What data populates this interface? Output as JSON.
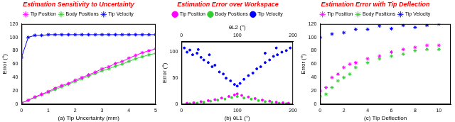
{
  "chart_data": [
    {
      "type": "line",
      "title": "Estimation Sensitivity to Uncertainty",
      "label": "(a)",
      "xlabel": "Tip Uncertainty (mm)",
      "ylabel": "Error (°)",
      "xlim": [
        0,
        5
      ],
      "xticks": [
        0,
        1,
        2,
        3,
        4,
        5
      ],
      "ylim": [
        0,
        120
      ],
      "yticks": [
        0,
        20,
        40,
        60,
        80,
        100,
        120
      ],
      "grid": false,
      "legend": "top",
      "series": [
        {
          "name": "Tip Position",
          "color": "#ff00ff",
          "marker": "star",
          "x": [
            0,
            0.25,
            0.5,
            0.75,
            1,
            1.25,
            1.5,
            1.75,
            2,
            2.25,
            2.5,
            2.75,
            3,
            3.25,
            3.5,
            3.75,
            4,
            4.25,
            4.5,
            4.75,
            5
          ],
          "values": [
            2,
            6,
            11,
            15,
            19,
            24,
            28,
            31,
            36,
            40,
            44,
            48,
            53,
            56,
            61,
            64,
            69,
            73,
            77,
            80,
            83
          ]
        },
        {
          "name": "Body Positions",
          "color": "#33cc33",
          "marker": "star",
          "x": [
            0,
            0.25,
            0.5,
            0.75,
            1,
            1.25,
            1.5,
            1.75,
            2,
            2.25,
            2.5,
            2.75,
            3,
            3.25,
            3.5,
            3.75,
            4,
            4.25,
            4.5,
            4.75,
            5
          ],
          "values": [
            2,
            6,
            10,
            14,
            18,
            22,
            26,
            30,
            34,
            38,
            42,
            46,
            50,
            53,
            57,
            60,
            64,
            68,
            71,
            74,
            76
          ]
        },
        {
          "name": "Tip Velocity",
          "color": "#0000ff",
          "marker": "star",
          "x": [
            0,
            0.25,
            0.5,
            0.75,
            1,
            1.25,
            1.5,
            1.75,
            2,
            2.25,
            2.5,
            2.75,
            3,
            3.25,
            3.5,
            3.75,
            4,
            4.25,
            4.5,
            4.75,
            5
          ],
          "values": [
            70,
            100,
            103,
            103,
            104,
            104,
            104,
            104,
            104,
            104,
            104,
            104,
            104,
            104,
            104,
            104,
            104,
            104,
            104,
            104,
            104
          ]
        }
      ]
    },
    {
      "type": "scatter",
      "title": "Estimation Error over Workspace",
      "label": "(b)",
      "xlabel": "θL1 (°)",
      "x2label": "θL2 (°)",
      "ylabel": "Error (°)",
      "xlim": [
        0,
        200
      ],
      "xticks": [
        0,
        100,
        200
      ],
      "x2lim": [
        0,
        200
      ],
      "x2ticks": [
        0,
        100,
        200
      ],
      "ylim": [
        0,
        120
      ],
      "yticks": [
        0,
        50,
        100
      ],
      "grid": false,
      "legend": "top",
      "series": [
        {
          "name": "Tip Position",
          "color": "#ff00ff",
          "marker": "circle",
          "x": [
            10,
            22,
            35,
            48,
            60,
            72,
            85,
            95,
            100,
            108,
            120,
            132,
            145,
            158,
            170,
            182,
            192
          ],
          "values": [
            2,
            3,
            5,
            7,
            9,
            12,
            15,
            18,
            20,
            17,
            14,
            11,
            8,
            6,
            4,
            3,
            2
          ]
        },
        {
          "name": "Body Positions",
          "color": "#33cc33",
          "marker": "circle",
          "x": [
            15,
            28,
            40,
            52,
            65,
            78,
            90,
            100,
            112,
            125,
            138,
            150,
            162,
            175,
            188
          ],
          "values": [
            1,
            2,
            4,
            6,
            8,
            10,
            13,
            15,
            12,
            10,
            7,
            5,
            4,
            2,
            1
          ]
        },
        {
          "name": "Tip Velocity",
          "color": "#0000ff",
          "marker": "circle",
          "x": [
            5,
            10,
            15,
            20,
            28,
            30,
            35,
            40,
            48,
            50,
            55,
            60,
            68,
            75,
            80,
            88,
            95,
            100,
            105,
            112,
            120,
            128,
            135,
            142,
            150,
            150,
            158,
            165,
            170,
            172,
            180,
            188,
            195
          ],
          "values": [
            108,
            100,
            104,
            95,
            98,
            105,
            90,
            85,
            80,
            95,
            72,
            75,
            62,
            58,
            50,
            45,
            38,
            35,
            40,
            48,
            55,
            60,
            68,
            72,
            80,
            98,
            85,
            92,
            108,
            95,
            100,
            103,
            108
          ]
        }
      ]
    },
    {
      "type": "scatter",
      "title": "Estimation Error with Tip Deflection",
      "label": "(c)",
      "xlabel": "Tip Deflection",
      "ylabel": "Error (°)",
      "xlim": [
        0,
        11
      ],
      "xticks": [
        0,
        2,
        4,
        6,
        8,
        10
      ],
      "ylim": [
        0,
        120
      ],
      "yticks": [
        0,
        20,
        40,
        60,
        80,
        100,
        120
      ],
      "grid": false,
      "legend": "top",
      "series": [
        {
          "name": "Tip Position",
          "color": "#ff00ff",
          "marker": "star",
          "x": [
            0,
            0.5,
            1,
            1.5,
            2,
            2.5,
            3,
            4,
            5,
            6,
            7,
            8,
            9,
            10
          ],
          "values": [
            20,
            25,
            40,
            45,
            55,
            60,
            62,
            68,
            72,
            78,
            82,
            85,
            88,
            88
          ]
        },
        {
          "name": "Body Positions",
          "color": "#33cc33",
          "marker": "star",
          "x": [
            0,
            0.5,
            1,
            1.5,
            2,
            2.5,
            3,
            4,
            5,
            6,
            7,
            8,
            9,
            10
          ],
          "values": [
            12,
            15,
            25,
            35,
            40,
            45,
            55,
            62,
            68,
            72,
            75,
            80,
            82,
            82
          ]
        },
        {
          "name": "Tip Velocity",
          "color": "#0000ff",
          "marker": "star",
          "x": [
            0,
            1,
            2,
            3,
            4,
            5,
            6,
            7,
            8,
            9,
            10
          ],
          "values": [
            100,
            105,
            107,
            112,
            112,
            117,
            113,
            118,
            115,
            118,
            120
          ]
        }
      ]
    }
  ]
}
